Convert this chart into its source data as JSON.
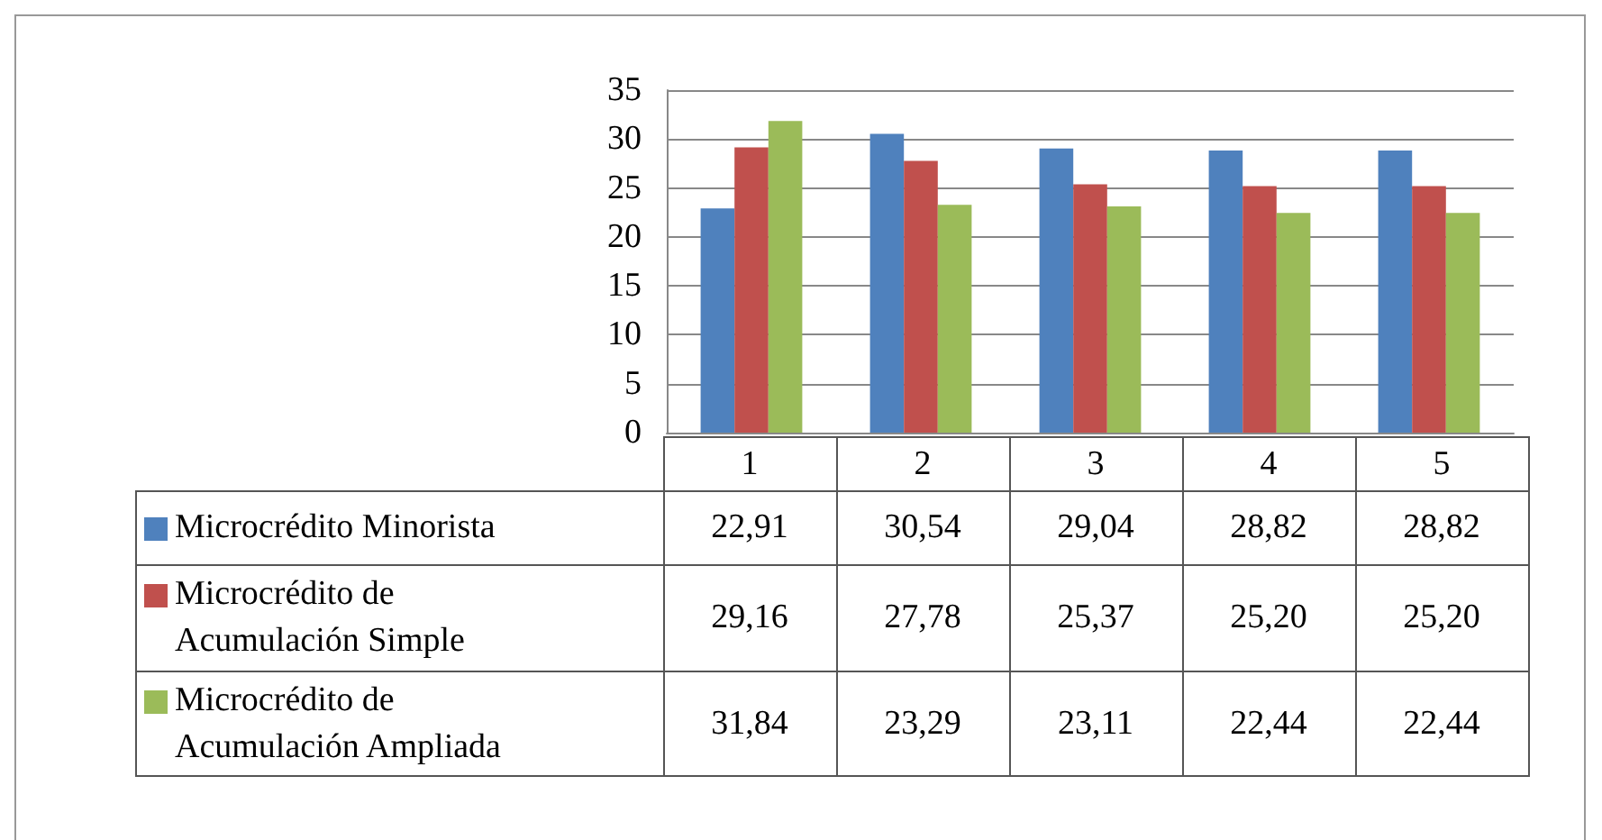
{
  "chart_data": {
    "type": "bar",
    "categories": [
      "1",
      "2",
      "3",
      "4",
      "5"
    ],
    "series": [
      {
        "name": "Microcrédito Minorista",
        "color": "#4f81bd",
        "values": [
          22.91,
          30.54,
          29.04,
          28.82,
          28.82
        ],
        "value_labels": [
          "22,91",
          "30,54",
          "29,04",
          "28,82",
          "28,82"
        ]
      },
      {
        "name": "Microcrédito de Acumulación Simple",
        "color": "#c0504d",
        "values": [
          29.16,
          27.78,
          25.37,
          25.2,
          25.2
        ],
        "value_labels": [
          "29,16",
          "27,78",
          "25,37",
          "25,20",
          "25,20"
        ]
      },
      {
        "name": "Microcrédito de Acumulación Ampliada",
        "color": "#9bbb59",
        "values": [
          31.84,
          23.29,
          23.11,
          22.44,
          22.44
        ],
        "value_labels": [
          "31,84",
          "23,29",
          "23,11",
          "22,44",
          "22,44"
        ]
      }
    ],
    "ylim": [
      0,
      35
    ],
    "yticks": [
      0,
      5,
      10,
      15,
      20,
      25,
      30,
      35
    ],
    "grid": "y",
    "legend": "bottom"
  }
}
